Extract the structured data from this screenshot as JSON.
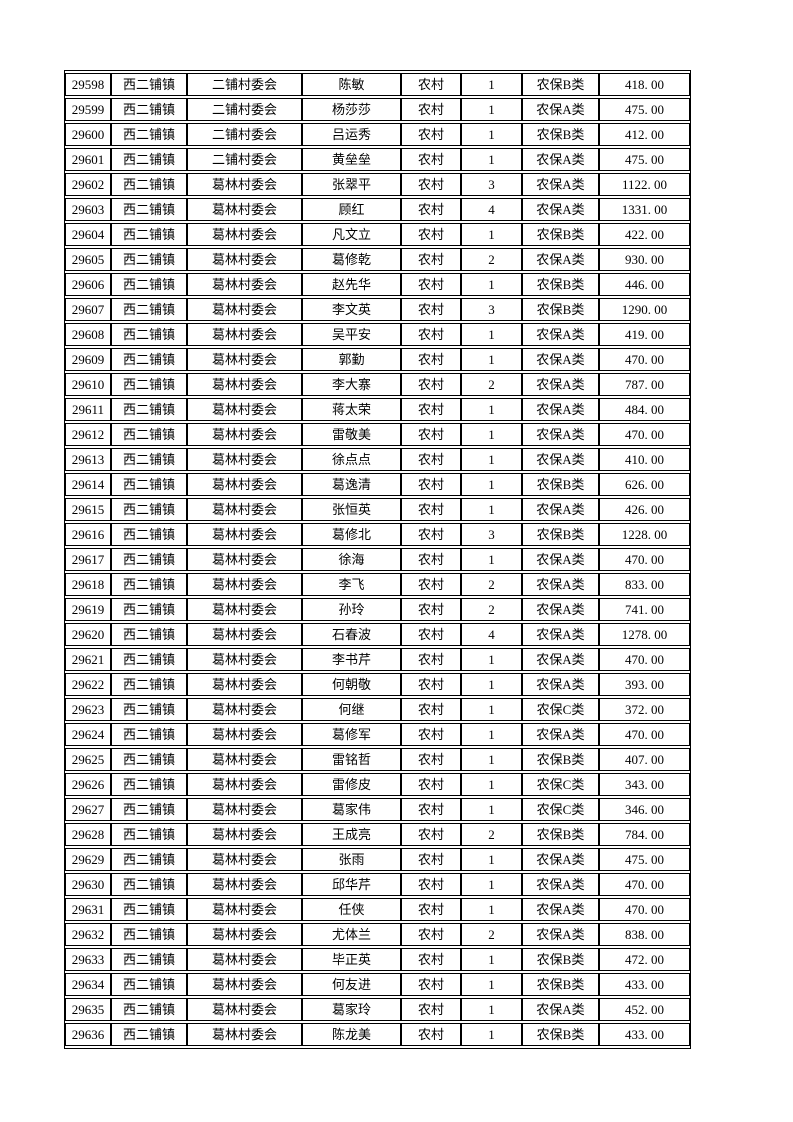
{
  "page": {
    "background_color": "#ffffff",
    "text_color": "#000000",
    "border_color": "#000000"
  },
  "table": {
    "columns": [
      {
        "name": "row-number"
      },
      {
        "name": "town"
      },
      {
        "name": "village-committee"
      },
      {
        "name": "person-name"
      },
      {
        "name": "residence-type"
      },
      {
        "name": "person-count"
      },
      {
        "name": "insurance-category"
      },
      {
        "name": "amount"
      }
    ],
    "rows": [
      [
        29598,
        "西二铺镇",
        "二铺村委会",
        "陈敏",
        "农村",
        1,
        "农保B类",
        "418. 00"
      ],
      [
        29599,
        "西二铺镇",
        "二铺村委会",
        "杨莎莎",
        "农村",
        1,
        "农保A类",
        "475. 00"
      ],
      [
        29600,
        "西二铺镇",
        "二铺村委会",
        "吕运秀",
        "农村",
        1,
        "农保B类",
        "412. 00"
      ],
      [
        29601,
        "西二铺镇",
        "二铺村委会",
        "黄垒垒",
        "农村",
        1,
        "农保A类",
        "475. 00"
      ],
      [
        29602,
        "西二铺镇",
        "葛林村委会",
        "张翠平",
        "农村",
        3,
        "农保A类",
        "1122. 00"
      ],
      [
        29603,
        "西二铺镇",
        "葛林村委会",
        "顾红",
        "农村",
        4,
        "农保A类",
        "1331. 00"
      ],
      [
        29604,
        "西二铺镇",
        "葛林村委会",
        "凡文立",
        "农村",
        1,
        "农保B类",
        "422. 00"
      ],
      [
        29605,
        "西二铺镇",
        "葛林村委会",
        "葛修乾",
        "农村",
        2,
        "农保A类",
        "930. 00"
      ],
      [
        29606,
        "西二铺镇",
        "葛林村委会",
        "赵先华",
        "农村",
        1,
        "农保B类",
        "446. 00"
      ],
      [
        29607,
        "西二铺镇",
        "葛林村委会",
        "李文英",
        "农村",
        3,
        "农保B类",
        "1290. 00"
      ],
      [
        29608,
        "西二铺镇",
        "葛林村委会",
        "吴平安",
        "农村",
        1,
        "农保A类",
        "419. 00"
      ],
      [
        29609,
        "西二铺镇",
        "葛林村委会",
        "郭勤",
        "农村",
        1,
        "农保A类",
        "470. 00"
      ],
      [
        29610,
        "西二铺镇",
        "葛林村委会",
        "李大寨",
        "农村",
        2,
        "农保A类",
        "787. 00"
      ],
      [
        29611,
        "西二铺镇",
        "葛林村委会",
        "蒋太荣",
        "农村",
        1,
        "农保A类",
        "484. 00"
      ],
      [
        29612,
        "西二铺镇",
        "葛林村委会",
        "雷敬美",
        "农村",
        1,
        "农保A类",
        "470. 00"
      ],
      [
        29613,
        "西二铺镇",
        "葛林村委会",
        "徐点点",
        "农村",
        1,
        "农保A类",
        "410. 00"
      ],
      [
        29614,
        "西二铺镇",
        "葛林村委会",
        "葛逸清",
        "农村",
        1,
        "农保B类",
        "626. 00"
      ],
      [
        29615,
        "西二铺镇",
        "葛林村委会",
        "张恒英",
        "农村",
        1,
        "农保A类",
        "426. 00"
      ],
      [
        29616,
        "西二铺镇",
        "葛林村委会",
        "葛修北",
        "农村",
        3,
        "农保B类",
        "1228. 00"
      ],
      [
        29617,
        "西二铺镇",
        "葛林村委会",
        "徐海",
        "农村",
        1,
        "农保A类",
        "470. 00"
      ],
      [
        29618,
        "西二铺镇",
        "葛林村委会",
        "李飞",
        "农村",
        2,
        "农保A类",
        "833. 00"
      ],
      [
        29619,
        "西二铺镇",
        "葛林村委会",
        "孙玲",
        "农村",
        2,
        "农保A类",
        "741. 00"
      ],
      [
        29620,
        "西二铺镇",
        "葛林村委会",
        "石春波",
        "农村",
        4,
        "农保A类",
        "1278. 00"
      ],
      [
        29621,
        "西二铺镇",
        "葛林村委会",
        "李书芹",
        "农村",
        1,
        "农保A类",
        "470. 00"
      ],
      [
        29622,
        "西二铺镇",
        "葛林村委会",
        "何朝敬",
        "农村",
        1,
        "农保A类",
        "393. 00"
      ],
      [
        29623,
        "西二铺镇",
        "葛林村委会",
        "何继",
        "农村",
        1,
        "农保C类",
        "372. 00"
      ],
      [
        29624,
        "西二铺镇",
        "葛林村委会",
        "葛修军",
        "农村",
        1,
        "农保A类",
        "470. 00"
      ],
      [
        29625,
        "西二铺镇",
        "葛林村委会",
        "雷铭哲",
        "农村",
        1,
        "农保B类",
        "407. 00"
      ],
      [
        29626,
        "西二铺镇",
        "葛林村委会",
        "雷修皮",
        "农村",
        1,
        "农保C类",
        "343. 00"
      ],
      [
        29627,
        "西二铺镇",
        "葛林村委会",
        "葛家伟",
        "农村",
        1,
        "农保C类",
        "346. 00"
      ],
      [
        29628,
        "西二铺镇",
        "葛林村委会",
        "王成亮",
        "农村",
        2,
        "农保B类",
        "784. 00"
      ],
      [
        29629,
        "西二铺镇",
        "葛林村委会",
        "张雨",
        "农村",
        1,
        "农保A类",
        "475. 00"
      ],
      [
        29630,
        "西二铺镇",
        "葛林村委会",
        "邱华芹",
        "农村",
        1,
        "农保A类",
        "470. 00"
      ],
      [
        29631,
        "西二铺镇",
        "葛林村委会",
        "任侠",
        "农村",
        1,
        "农保A类",
        "470. 00"
      ],
      [
        29632,
        "西二铺镇",
        "葛林村委会",
        "尤体兰",
        "农村",
        2,
        "农保A类",
        "838. 00"
      ],
      [
        29633,
        "西二铺镇",
        "葛林村委会",
        "毕正英",
        "农村",
        1,
        "农保B类",
        "472. 00"
      ],
      [
        29634,
        "西二铺镇",
        "葛林村委会",
        "何友进",
        "农村",
        1,
        "农保B类",
        "433. 00"
      ],
      [
        29635,
        "西二铺镇",
        "葛林村委会",
        "葛家玲",
        "农村",
        1,
        "农保A类",
        "452. 00"
      ],
      [
        29636,
        "西二铺镇",
        "葛林村委会",
        "陈龙美",
        "农村",
        1,
        "农保B类",
        "433. 00"
      ]
    ]
  }
}
